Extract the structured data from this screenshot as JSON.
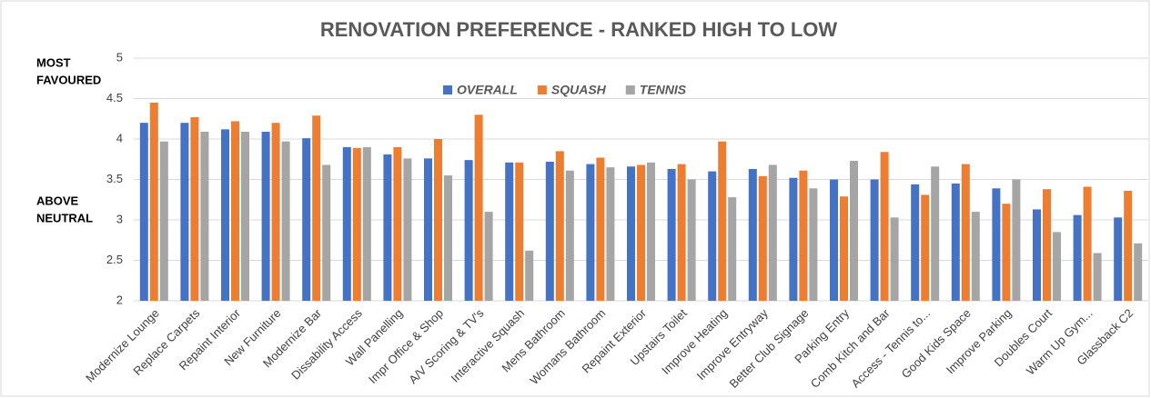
{
  "chart_data": {
    "type": "bar",
    "title": "RENOVATION PREFERENCE - RANKED HIGH TO LOW",
    "annotations": [
      "MOST",
      "FAVOURED",
      "ABOVE",
      "NEUTRAL"
    ],
    "categories": [
      "Modernize Lounge",
      "Replace Carpets",
      "Repaint Interior",
      "New Furniture",
      "Modernize Bar",
      "Dissability Access",
      "Wall Panelling",
      "Impr Office & Shop",
      "A/V Scoring & TV's",
      "Interactive Squash",
      "Mens Bathroom",
      "Womans Bathroom",
      "Repaint Exterior",
      "Upstairs Toilet",
      "Improve Heating",
      "Improve Entryway",
      "Better Club Signage",
      "Parking Entry",
      "Comb Kitch and Bar",
      "Access - Tennis to...",
      "Good Kids Space",
      "Improve Parking",
      "Doubles Court",
      "Warm Up Gym...",
      "Glassback C2"
    ],
    "series": [
      {
        "name": "OVERALL",
        "color": "#4472c4",
        "values": [
          4.2,
          4.2,
          4.12,
          4.09,
          4.01,
          3.9,
          3.81,
          3.76,
          3.74,
          3.71,
          3.72,
          3.69,
          3.66,
          3.63,
          3.6,
          3.63,
          3.52,
          3.5,
          3.5,
          3.44,
          3.45,
          3.39,
          3.13,
          3.06,
          3.03
        ]
      },
      {
        "name": "SQUASH",
        "color": "#ed7d31",
        "values": [
          4.45,
          4.27,
          4.22,
          4.2,
          4.29,
          3.89,
          3.9,
          4.0,
          4.3,
          3.71,
          3.85,
          3.77,
          3.68,
          3.69,
          3.97,
          3.54,
          3.61,
          3.29,
          3.84,
          3.31,
          3.69,
          3.2,
          3.38,
          3.41,
          3.36
        ]
      },
      {
        "name": "TENNIS",
        "color": "#a5a5a5",
        "values": [
          3.97,
          4.09,
          4.09,
          3.97,
          3.68,
          3.9,
          3.76,
          3.55,
          3.1,
          2.62,
          3.61,
          3.65,
          3.71,
          3.5,
          3.28,
          3.68,
          3.39,
          3.73,
          3.03,
          3.66,
          3.1,
          3.5,
          2.85,
          2.59,
          2.71
        ]
      }
    ],
    "ylim": [
      2,
      5
    ],
    "yticks": [
      2,
      2.5,
      3,
      3.5,
      4,
      4.5,
      5
    ],
    "grid": true,
    "legend": "top"
  }
}
